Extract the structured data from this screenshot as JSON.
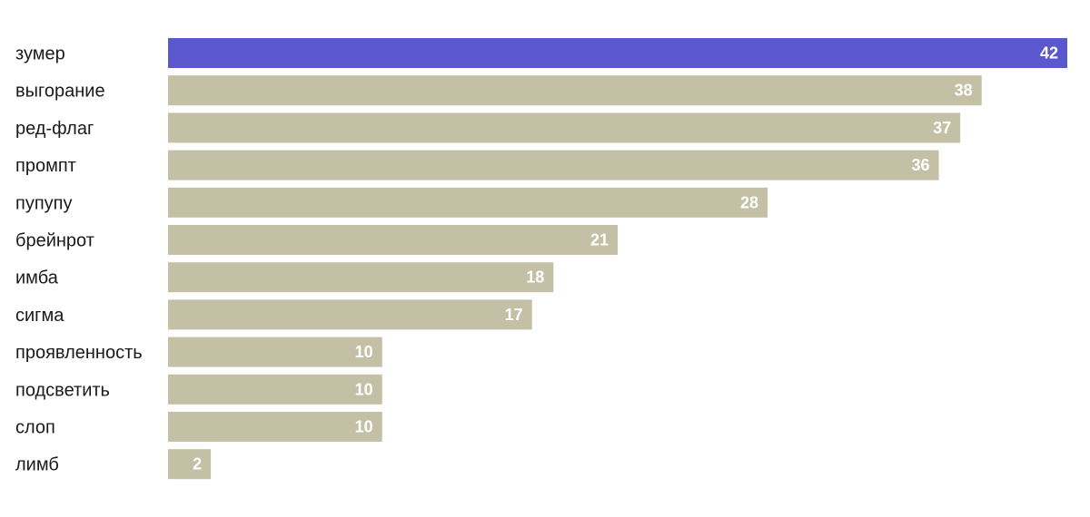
{
  "chart_data": {
    "type": "bar",
    "orientation": "horizontal",
    "categories": [
      "зумер",
      "выгорание",
      "ред-флаг",
      "промпт",
      "пупупу",
      "брейнрот",
      "имба",
      "сигма",
      "проявленность",
      "подсветить",
      "слоп",
      "лимб"
    ],
    "values": [
      42,
      38,
      37,
      36,
      28,
      21,
      18,
      17,
      10,
      10,
      10,
      2
    ],
    "highlight_index": 0,
    "xlim": [
      0,
      42
    ],
    "grid": false,
    "legend": "none",
    "colors": {
      "highlight": "#5b57cc",
      "default": "#c3c0a5",
      "value_label": "#ffffff",
      "category_label": "#1a1a1a"
    }
  }
}
